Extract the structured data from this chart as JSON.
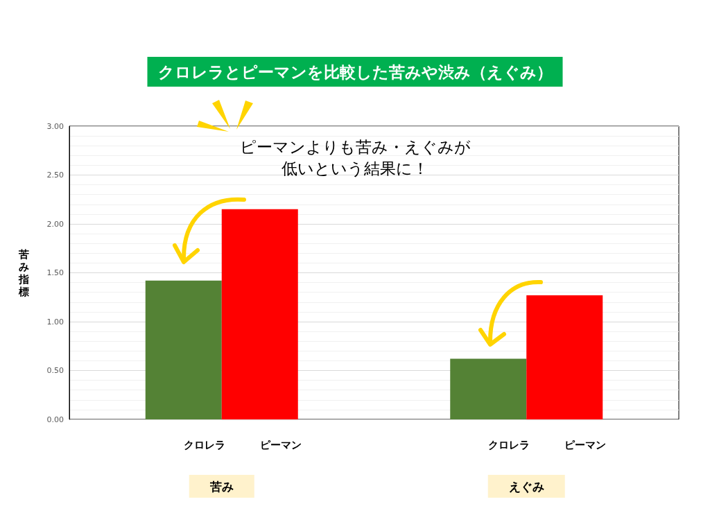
{
  "chart_data": {
    "type": "bar",
    "title": "クロレラとピーマンを比較した苦みや渋み（えぐみ）",
    "ylabel": "苦み指標",
    "categories": [
      "苦み",
      "えぐみ"
    ],
    "series": [
      {
        "name": "クロレラ",
        "color": "#548235",
        "values": [
          1.42,
          0.62
        ]
      },
      {
        "name": "ピーマン",
        "color": "#ff0000",
        "values": [
          2.15,
          1.27
        ]
      }
    ],
    "ylim": [
      0,
      3
    ],
    "yticks": [
      {
        "value": 0,
        "label": "0.00"
      },
      {
        "value": 0.5,
        "label": "0.50"
      },
      {
        "value": 1,
        "label": "1.00"
      },
      {
        "value": 1.5,
        "label": "1.50"
      },
      {
        "value": 2,
        "label": "2.00"
      },
      {
        "value": 2.5,
        "label": "2.50"
      },
      {
        "value": 3,
        "label": "3.00"
      }
    ],
    "grid": "y",
    "legend": false,
    "annotations": [
      "ピーマンよりも苦み・えぐみが",
      "低いという結果に！"
    ]
  }
}
